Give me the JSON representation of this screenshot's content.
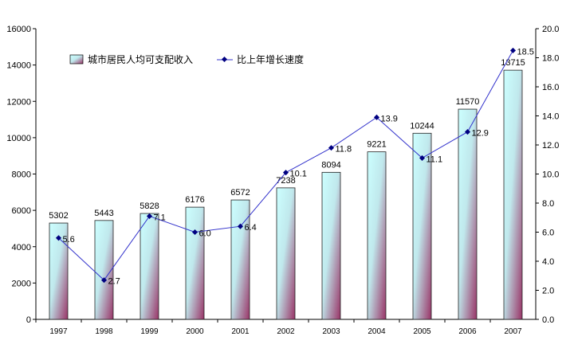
{
  "chart_data": {
    "type": "bar+line",
    "categories": [
      "1997",
      "1998",
      "1999",
      "2000",
      "2001",
      "2002",
      "2003",
      "2004",
      "2005",
      "2006",
      "2007"
    ],
    "series": [
      {
        "name": "城市居民人均可支配收入",
        "type": "bar",
        "axis": "left",
        "values": [
          5302,
          5443,
          5828,
          6176,
          6572,
          7238,
          8094,
          9221,
          10244,
          11570,
          13715
        ]
      },
      {
        "name": "比上年增长速度",
        "type": "line",
        "axis": "right",
        "values": [
          5.6,
          2.7,
          7.1,
          6.0,
          6.4,
          10.1,
          11.8,
          13.9,
          11.1,
          12.9,
          18.5
        ]
      }
    ],
    "left_axis": {
      "ylim": [
        0,
        16000
      ],
      "ticks": [
        0,
        2000,
        4000,
        6000,
        8000,
        10000,
        12000,
        14000,
        16000
      ]
    },
    "right_axis": {
      "ylim": [
        0,
        20
      ],
      "ticks": [
        "0.0",
        "2.0",
        "4.0",
        "6.0",
        "8.0",
        "10.0",
        "12.0",
        "14.0",
        "16.0",
        "18.0",
        "20.0"
      ]
    },
    "legend_placement": "top-left",
    "grid": false,
    "colors": {
      "bar_top": "#ccffff",
      "bar_bottom": "#993366",
      "line": "#3333cc",
      "marker": "#000080"
    }
  }
}
